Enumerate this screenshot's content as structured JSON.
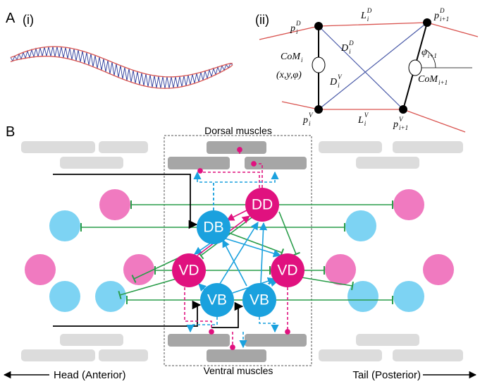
{
  "panel_a": {
    "label": "A",
    "part_i": "(i)",
    "part_ii": "(ii)",
    "labels": [
      {
        "base": "p",
        "sub": "i",
        "sup": "D"
      },
      {
        "base": "L",
        "sub": "i",
        "sup": "D"
      },
      {
        "base": "p",
        "sub": "i+1",
        "sup": "D"
      },
      {
        "base": "D",
        "sub": "i",
        "sup": "D"
      },
      {
        "base": "CoM",
        "sub": "i"
      },
      {
        "base": "(x,y,φ)"
      },
      {
        "base": "D",
        "sub": "i",
        "sup": "V"
      },
      {
        "base": "φ",
        "sub": "i+1"
      },
      {
        "base": "CoM",
        "sub": "i+1"
      },
      {
        "base": "p",
        "sub": "i",
        "sup": "V"
      },
      {
        "base": "L",
        "sub": "i",
        "sup": "V"
      },
      {
        "base": "p",
        "sub": "i+1",
        "sup": "V"
      }
    ]
  },
  "panel_b": {
    "label": "B",
    "dorsal": "Dorsal muscles",
    "ventral": "Ventral muscles",
    "neurons": [
      "DD",
      "DB",
      "VD",
      "VD",
      "VB",
      "VB"
    ],
    "head": "Head (Anterior)",
    "tail": "Tail (Posterior)"
  }
}
